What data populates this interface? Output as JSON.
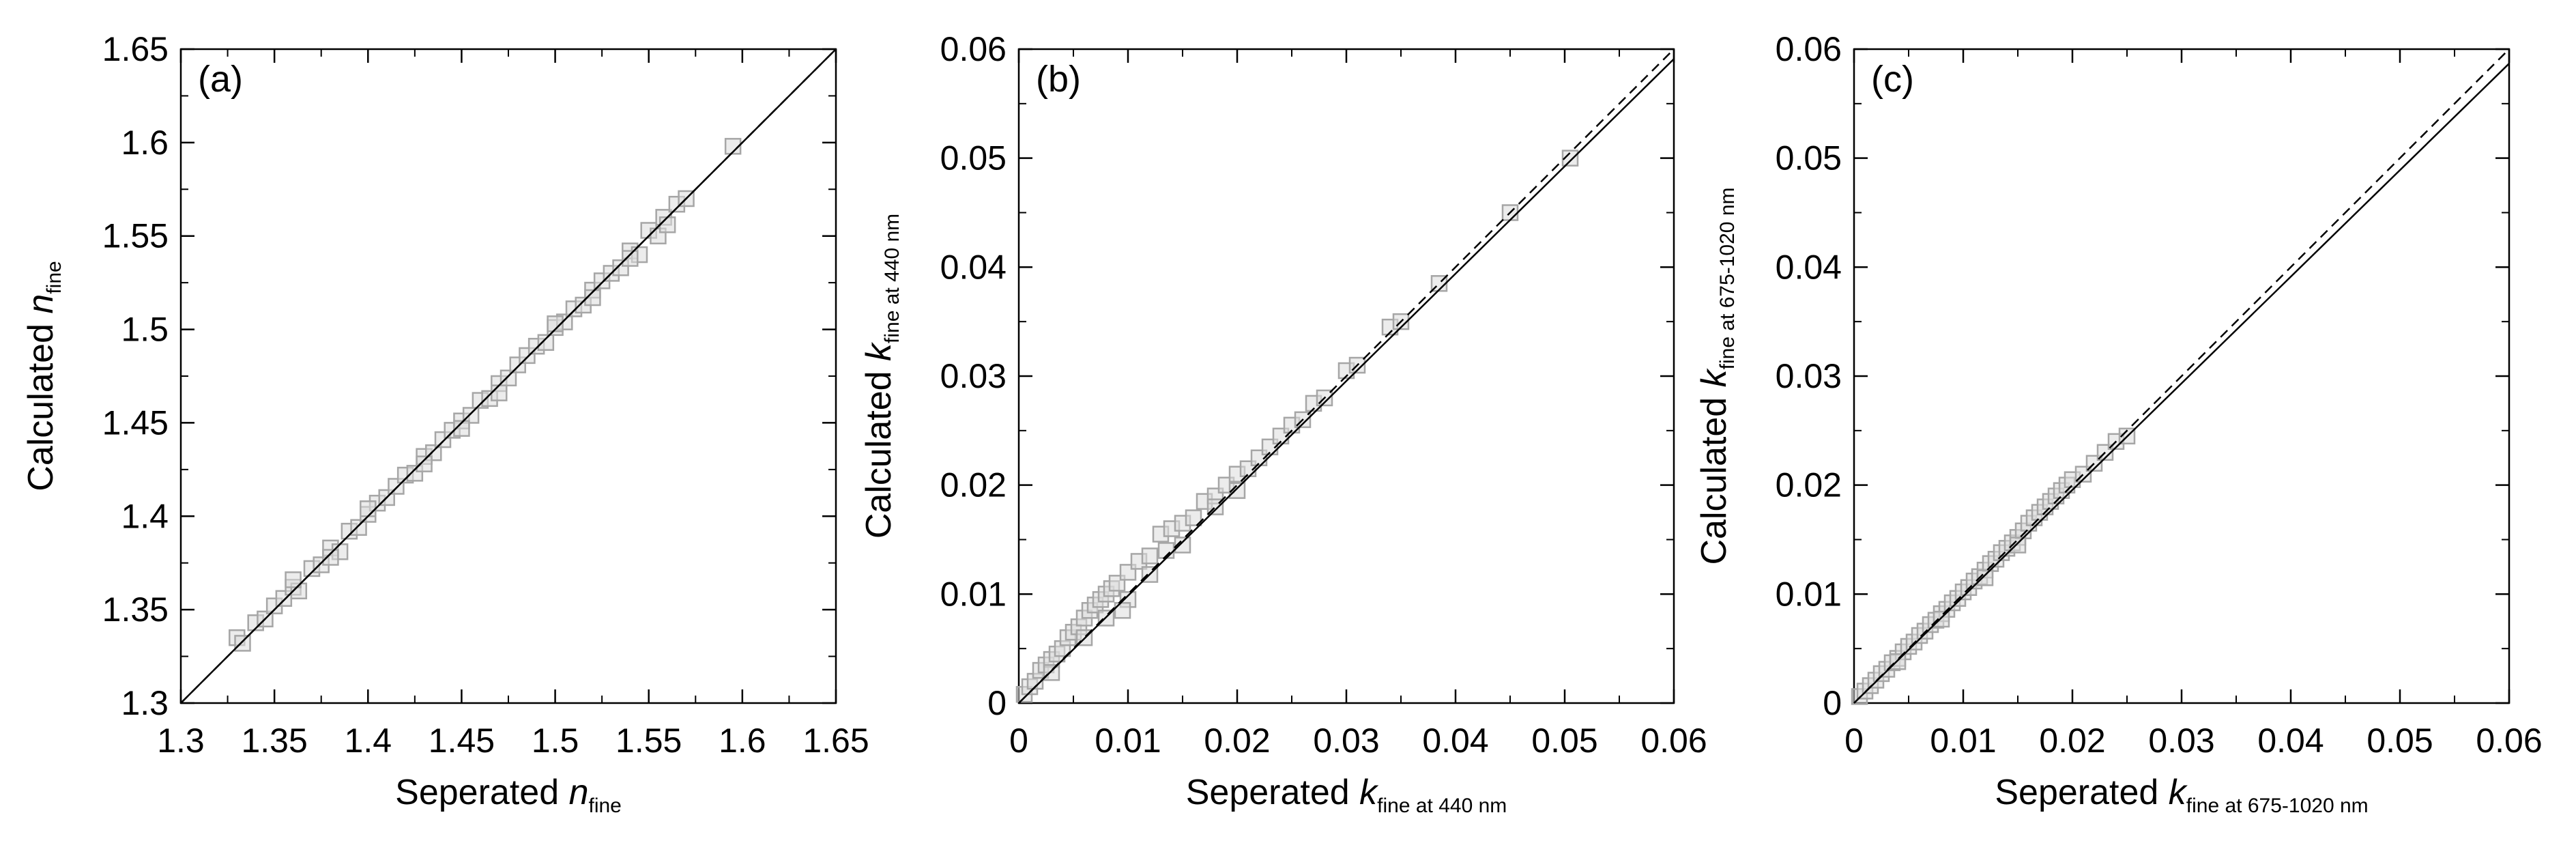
{
  "colors": {
    "axis": "#000000",
    "marker_stroke": "#a6a6a6",
    "marker_fill": "#dcdcdc",
    "one_to_one": "#000000",
    "fit": "#000000"
  },
  "chart_data": [
    {
      "type": "scatter",
      "panel_label": "(a)",
      "xlabel": {
        "main": "Seperated ",
        "var": "n",
        "sub": "fine"
      },
      "ylabel": {
        "main": "Calculated ",
        "var": "n",
        "sub": "fine"
      },
      "xlim": [
        1.3,
        1.65
      ],
      "ylim": [
        1.3,
        1.65
      ],
      "xticks": [
        "1.3",
        "1.35",
        "1.4",
        "1.45",
        "1.5",
        "1.55",
        "1.6",
        "1.65"
      ],
      "yticks": [
        "1.3",
        "1.35",
        "1.4",
        "1.45",
        "1.5",
        "1.55",
        "1.6",
        "1.65"
      ],
      "reference_lines": [
        {
          "style": "dashed",
          "slope": 1.0,
          "intercept": 0.0
        },
        {
          "style": "solid",
          "slope": 1.0,
          "intercept": 0.0
        }
      ],
      "points": [
        [
          1.33,
          1.335
        ],
        [
          1.333,
          1.332
        ],
        [
          1.34,
          1.343
        ],
        [
          1.345,
          1.345
        ],
        [
          1.35,
          1.352
        ],
        [
          1.355,
          1.356
        ],
        [
          1.36,
          1.362
        ],
        [
          1.363,
          1.36
        ],
        [
          1.37,
          1.372
        ],
        [
          1.375,
          1.374
        ],
        [
          1.38,
          1.383
        ],
        [
          1.385,
          1.381
        ],
        [
          1.39,
          1.392
        ],
        [
          1.395,
          1.394
        ],
        [
          1.4,
          1.401
        ],
        [
          1.405,
          1.407
        ],
        [
          1.41,
          1.41
        ],
        [
          1.415,
          1.416
        ],
        [
          1.42,
          1.422
        ],
        [
          1.425,
          1.423
        ],
        [
          1.43,
          1.432
        ],
        [
          1.435,
          1.434
        ],
        [
          1.44,
          1.441
        ],
        [
          1.445,
          1.446
        ],
        [
          1.45,
          1.451
        ],
        [
          1.455,
          1.454
        ],
        [
          1.46,
          1.462
        ],
        [
          1.465,
          1.463
        ],
        [
          1.47,
          1.471
        ],
        [
          1.475,
          1.474
        ],
        [
          1.48,
          1.481
        ],
        [
          1.485,
          1.486
        ],
        [
          1.49,
          1.491
        ],
        [
          1.495,
          1.493
        ],
        [
          1.5,
          1.501
        ],
        [
          1.505,
          1.504
        ],
        [
          1.51,
          1.511
        ],
        [
          1.515,
          1.513
        ],
        [
          1.52,
          1.521
        ],
        [
          1.525,
          1.526
        ],
        [
          1.53,
          1.53
        ],
        [
          1.535,
          1.533
        ],
        [
          1.54,
          1.542
        ],
        [
          1.545,
          1.54
        ],
        [
          1.55,
          1.553
        ],
        [
          1.555,
          1.55
        ],
        [
          1.558,
          1.56
        ],
        [
          1.56,
          1.556
        ],
        [
          1.565,
          1.567
        ],
        [
          1.57,
          1.57
        ],
        [
          1.595,
          1.598
        ],
        [
          1.36,
          1.366
        ],
        [
          1.4,
          1.404
        ],
        [
          1.45,
          1.447
        ],
        [
          1.5,
          1.503
        ],
        [
          1.54,
          1.538
        ],
        [
          1.47,
          1.466
        ],
        [
          1.43,
          1.428
        ],
        [
          1.38,
          1.378
        ],
        [
          1.52,
          1.517
        ]
      ]
    },
    {
      "type": "scatter",
      "panel_label": "(b)",
      "xlabel": {
        "main": "Seperated ",
        "var": "k",
        "sub": "fine at 440 nm"
      },
      "ylabel": {
        "main": "Calculated ",
        "var": "k",
        "sub": "fine at 440 nm"
      },
      "xlim": [
        0,
        0.06
      ],
      "ylim": [
        0,
        0.06
      ],
      "xticks": [
        "0",
        "0.01",
        "0.02",
        "0.03",
        "0.04",
        "0.05",
        "0.06"
      ],
      "yticks": [
        "0",
        "0.01",
        "0.02",
        "0.03",
        "0.04",
        "0.05",
        "0.06"
      ],
      "reference_lines": [
        {
          "style": "dashed",
          "slope": 1.0,
          "intercept": 0.0
        },
        {
          "style": "solid",
          "slope": 0.985,
          "intercept": 0.0
        }
      ],
      "points": [
        [
          0.0005,
          0.0008
        ],
        [
          0.001,
          0.0015
        ],
        [
          0.0015,
          0.002
        ],
        [
          0.002,
          0.003
        ],
        [
          0.0025,
          0.0035
        ],
        [
          0.003,
          0.004
        ],
        [
          0.0035,
          0.0045
        ],
        [
          0.004,
          0.005
        ],
        [
          0.0045,
          0.006
        ],
        [
          0.005,
          0.0065
        ],
        [
          0.0055,
          0.007
        ],
        [
          0.006,
          0.0078
        ],
        [
          0.0065,
          0.0085
        ],
        [
          0.007,
          0.009
        ],
        [
          0.0075,
          0.0095
        ],
        [
          0.008,
          0.01
        ],
        [
          0.0085,
          0.0105
        ],
        [
          0.009,
          0.011
        ],
        [
          0.01,
          0.012
        ],
        [
          0.011,
          0.013
        ],
        [
          0.012,
          0.0135
        ],
        [
          0.013,
          0.0155
        ],
        [
          0.014,
          0.016
        ],
        [
          0.015,
          0.0165
        ],
        [
          0.016,
          0.017
        ],
        [
          0.017,
          0.0185
        ],
        [
          0.018,
          0.019
        ],
        [
          0.019,
          0.02
        ],
        [
          0.02,
          0.021
        ],
        [
          0.021,
          0.0215
        ],
        [
          0.022,
          0.0225
        ],
        [
          0.023,
          0.0235
        ],
        [
          0.024,
          0.0245
        ],
        [
          0.025,
          0.0255
        ],
        [
          0.026,
          0.026
        ],
        [
          0.027,
          0.0275
        ],
        [
          0.028,
          0.028
        ],
        [
          0.03,
          0.0305
        ],
        [
          0.031,
          0.031
        ],
        [
          0.034,
          0.0345
        ],
        [
          0.035,
          0.035
        ],
        [
          0.0385,
          0.0385
        ],
        [
          0.045,
          0.045
        ],
        [
          0.0505,
          0.05
        ],
        [
          0.006,
          0.006
        ],
        [
          0.01,
          0.0095
        ],
        [
          0.015,
          0.0145
        ],
        [
          0.02,
          0.0195
        ],
        [
          0.003,
          0.0028
        ],
        [
          0.012,
          0.0118
        ],
        [
          0.008,
          0.0078
        ],
        [
          0.018,
          0.018
        ],
        [
          0.0135,
          0.014
        ],
        [
          0.0095,
          0.0085
        ]
      ]
    },
    {
      "type": "scatter",
      "panel_label": "(c)",
      "xlabel": {
        "main": "Seperated ",
        "var": "k",
        "sub": "fine at 675-1020 nm"
      },
      "ylabel": {
        "main": "Calculated ",
        "var": "k",
        "sub": "fine at 675-1020 nm"
      },
      "xlim": [
        0,
        0.06
      ],
      "ylim": [
        0,
        0.06
      ],
      "xticks": [
        "0",
        "0.01",
        "0.02",
        "0.03",
        "0.04",
        "0.05",
        "0.06"
      ],
      "yticks": [
        "0",
        "0.01",
        "0.02",
        "0.03",
        "0.04",
        "0.05",
        "0.06"
      ],
      "reference_lines": [
        {
          "style": "dashed",
          "slope": 1.0,
          "intercept": 0.0
        },
        {
          "style": "solid",
          "slope": 0.978,
          "intercept": 0.0
        }
      ],
      "points": [
        [
          0.0005,
          0.0006
        ],
        [
          0.001,
          0.0011
        ],
        [
          0.0015,
          0.0016
        ],
        [
          0.002,
          0.0021
        ],
        [
          0.0025,
          0.0027
        ],
        [
          0.003,
          0.0031
        ],
        [
          0.0035,
          0.0037
        ],
        [
          0.004,
          0.0041
        ],
        [
          0.0045,
          0.0047
        ],
        [
          0.005,
          0.0052
        ],
        [
          0.0055,
          0.0056
        ],
        [
          0.006,
          0.0062
        ],
        [
          0.0065,
          0.0066
        ],
        [
          0.007,
          0.0072
        ],
        [
          0.0075,
          0.0076
        ],
        [
          0.008,
          0.0082
        ],
        [
          0.0085,
          0.0086
        ],
        [
          0.009,
          0.0092
        ],
        [
          0.0095,
          0.0096
        ],
        [
          0.01,
          0.0102
        ],
        [
          0.0105,
          0.0106
        ],
        [
          0.011,
          0.0112
        ],
        [
          0.0115,
          0.0116
        ],
        [
          0.012,
          0.0122
        ],
        [
          0.0125,
          0.0128
        ],
        [
          0.013,
          0.0132
        ],
        [
          0.0135,
          0.0138
        ],
        [
          0.014,
          0.0142
        ],
        [
          0.0145,
          0.0147
        ],
        [
          0.015,
          0.0152
        ],
        [
          0.0155,
          0.0158
        ],
        [
          0.016,
          0.0165
        ],
        [
          0.0165,
          0.017
        ],
        [
          0.017,
          0.0175
        ],
        [
          0.0175,
          0.018
        ],
        [
          0.018,
          0.0185
        ],
        [
          0.0185,
          0.019
        ],
        [
          0.019,
          0.0195
        ],
        [
          0.0195,
          0.02
        ],
        [
          0.02,
          0.0205
        ],
        [
          0.021,
          0.021
        ],
        [
          0.022,
          0.022
        ],
        [
          0.023,
          0.023
        ],
        [
          0.024,
          0.024
        ],
        [
          0.025,
          0.0245
        ],
        [
          0.012,
          0.0115
        ],
        [
          0.008,
          0.0077
        ],
        [
          0.015,
          0.0145
        ],
        [
          0.004,
          0.0038
        ]
      ]
    }
  ]
}
